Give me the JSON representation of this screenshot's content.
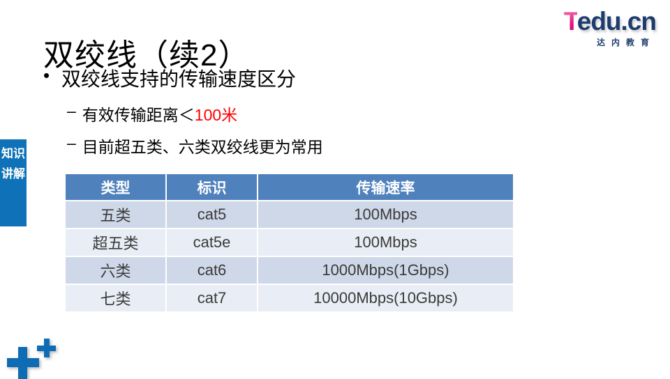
{
  "slide": {
    "title": "双绞线（续2）",
    "logo": {
      "brand_t": "T",
      "brand_rest": "edu.cn",
      "subtitle": "达内教育"
    },
    "side_tab": {
      "label": "知识讲解"
    },
    "bullets": {
      "marker_main": "•",
      "marker_sub": "–",
      "main": "双绞线支持的传输速度区分",
      "sub1_prefix": "有效传输距离＜",
      "sub1_highlight": "100米",
      "sub2": "目前超五类、六类双绞线更为常用"
    },
    "table": {
      "headers": [
        "类型",
        "标识",
        "传输速率"
      ],
      "rows": [
        [
          "五类",
          "cat5",
          "100Mbps"
        ],
        [
          "超五类",
          "cat5e",
          "100Mbps"
        ],
        [
          "六类",
          "cat6",
          "1000Mbps(1Gbps)"
        ],
        [
          "七类",
          "cat7",
          "10000Mbps(10Gbps)"
        ]
      ]
    },
    "colors": {
      "table_header_bg": "#4F81BD",
      "table_row_dark": "#CFD8E8",
      "table_row_light": "#E9EDF5",
      "side_tab_bg": "#0F72B8",
      "highlight_red": "#FF0000",
      "logo_navy": "#1E3C6E",
      "logo_pink": "#E5127D",
      "plus_blue": "#0E6CB5"
    }
  }
}
